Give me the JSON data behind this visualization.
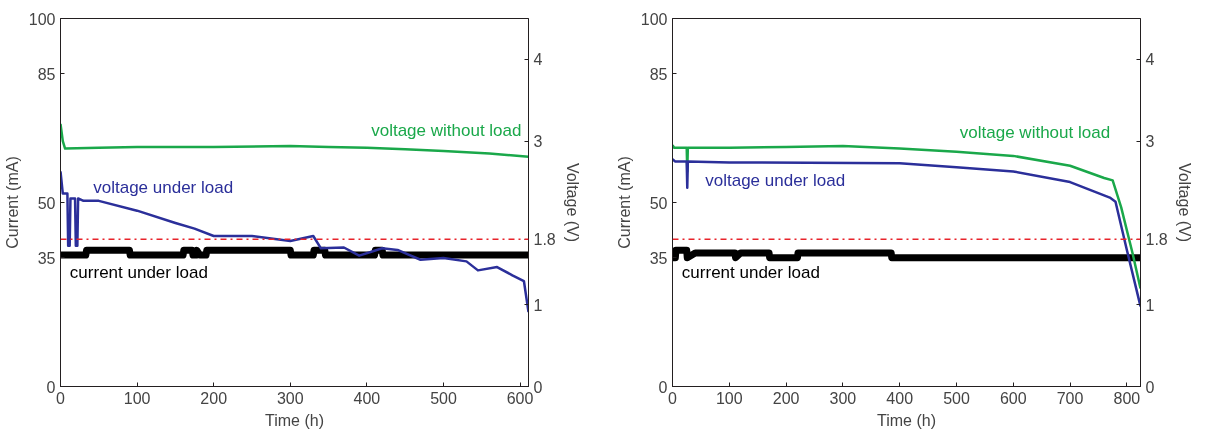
{
  "chart_data": [
    {
      "type": "line",
      "xlabel": "Time (h)",
      "ylabel": "Current (mA)",
      "y2label": "Voltage (V)",
      "xlim": [
        0,
        611
      ],
      "xticks": [
        0,
        100,
        200,
        300,
        400,
        500,
        600
      ],
      "ylim": [
        0,
        100
      ],
      "yticks": [
        0,
        35,
        50,
        85,
        100
      ],
      "y2lim": [
        0,
        4.5
      ],
      "y2ticks": [
        0,
        1,
        1.8,
        3,
        4
      ],
      "series": [
        {
          "name": "voltage without load",
          "color": "#1aa84a",
          "axis": "y2",
          "x": [
            0,
            3,
            6,
            50,
            100,
            200,
            300,
            350,
            400,
            450,
            500,
            560,
            611
          ],
          "values": [
            3.21,
            3.0,
            2.91,
            2.92,
            2.93,
            2.93,
            2.94,
            2.93,
            2.92,
            2.9,
            2.88,
            2.85,
            2.81
          ]
        },
        {
          "name": "voltage under load",
          "color": "#2b2f9a",
          "axis": "y2",
          "x": [
            0,
            3,
            9,
            10,
            12,
            13,
            19,
            20,
            22,
            23,
            30,
            50,
            100,
            150,
            175,
            200,
            250,
            300,
            330,
            340,
            370,
            390,
            420,
            440,
            470,
            500,
            530,
            545,
            570,
            590,
            605,
            611
          ],
          "values": [
            2.63,
            2.36,
            2.36,
            1.72,
            1.72,
            2.3,
            2.3,
            1.72,
            1.72,
            2.3,
            2.27,
            2.27,
            2.15,
            2.0,
            1.93,
            1.84,
            1.84,
            1.78,
            1.84,
            1.69,
            1.7,
            1.6,
            1.69,
            1.67,
            1.55,
            1.57,
            1.53,
            1.42,
            1.46,
            1.36,
            1.29,
            0.91
          ]
        },
        {
          "name": "current under load",
          "color": "#000000",
          "x": [
            0,
            33,
            34,
            90,
            91,
            160,
            161,
            172,
            173,
            177,
            178,
            182,
            190,
            191,
            300,
            301,
            330,
            331,
            345,
            346,
            410,
            411,
            420,
            421,
            611
          ],
          "values": [
            35.7,
            35.7,
            37,
            37,
            35.7,
            35.7,
            37,
            37,
            35.7,
            35.7,
            37,
            35.7,
            35.7,
            37,
            37,
            35.7,
            35.7,
            37,
            37,
            35.7,
            35.7,
            37,
            37,
            35.7,
            35.7
          ]
        }
      ],
      "ref_lines": [
        {
          "axis": "y2",
          "value": 1.8,
          "color": "#e8232a",
          "line_style": "dashdot"
        }
      ]
    },
    {
      "type": "line",
      "xlabel": "Time (h)",
      "ylabel": "Current (mA)",
      "y2label": "Voltage (V)",
      "xlim": [
        0,
        824
      ],
      "xticks": [
        0,
        100,
        200,
        300,
        400,
        500,
        600,
        700,
        800
      ],
      "ylim": [
        0,
        100
      ],
      "yticks": [
        0,
        35,
        50,
        85,
        100
      ],
      "y2lim": [
        0,
        4.5
      ],
      "y2ticks": [
        0,
        1,
        1.8,
        3,
        4
      ],
      "series": [
        {
          "name": "voltage without load",
          "color": "#1aa84a",
          "axis": "y2",
          "x": [
            0,
            3,
            25,
            26,
            27,
            100,
            200,
            300,
            400,
            500,
            600,
            700,
            760,
            775,
            790,
            810,
            824
          ],
          "values": [
            2.95,
            2.92,
            2.92,
            2.63,
            2.92,
            2.92,
            2.93,
            2.94,
            2.91,
            2.87,
            2.82,
            2.7,
            2.55,
            2.52,
            2.19,
            1.63,
            1.2
          ]
        },
        {
          "name": "voltage under load",
          "color": "#2b2f9a",
          "axis": "y2",
          "x": [
            0,
            5,
            25,
            26,
            27,
            100,
            400,
            500,
            600,
            700,
            770,
            780,
            800,
            824
          ],
          "values": [
            2.78,
            2.75,
            2.75,
            2.43,
            2.75,
            2.74,
            2.73,
            2.68,
            2.63,
            2.5,
            2.31,
            2.26,
            1.67,
            0.98
          ]
        },
        {
          "name": "current under load",
          "color": "#000000",
          "x": [
            0,
            5,
            6,
            25,
            26,
            40,
            110,
            111,
            120,
            170,
            171,
            220,
            221,
            385,
            386,
            824
          ],
          "values": [
            35,
            35,
            37,
            37,
            35,
            36.3,
            36.3,
            35,
            36.3,
            36.3,
            35,
            35,
            36.3,
            36.3,
            35,
            35
          ]
        }
      ],
      "ref_lines": [
        {
          "axis": "y2",
          "value": 1.8,
          "color": "#e8232a",
          "line_style": "dashdot"
        }
      ]
    }
  ]
}
